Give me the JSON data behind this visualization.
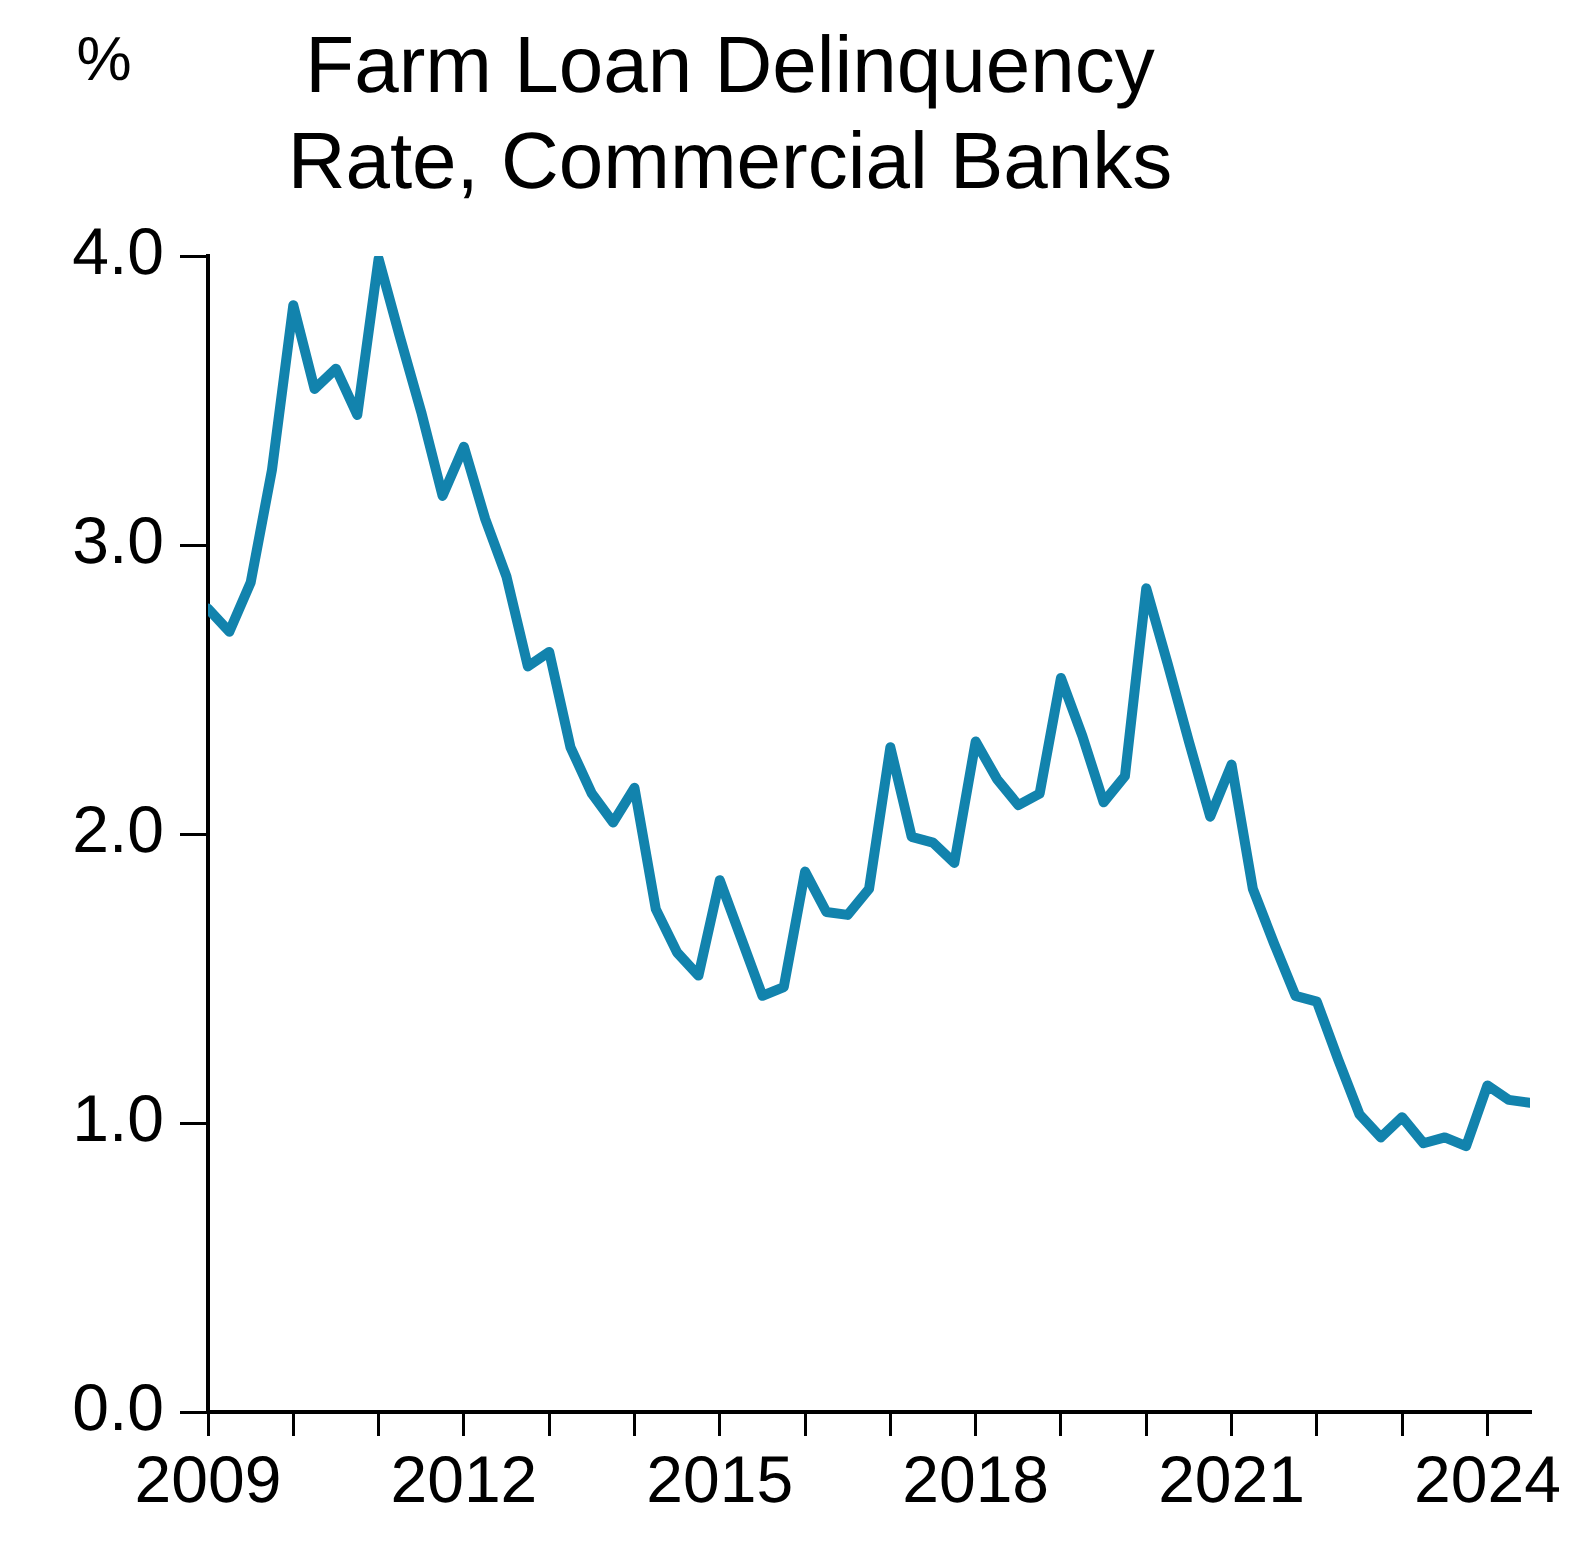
{
  "chart_data": {
    "type": "line",
    "title": "Farm Loan Delinquency Rate, Commercial Banks",
    "ylabel": "%",
    "x": [
      "2009-01",
      "2009-04",
      "2009-07",
      "2009-10",
      "2010-01",
      "2010-04",
      "2010-07",
      "2010-10",
      "2011-01",
      "2011-04",
      "2011-07",
      "2011-10",
      "2012-01",
      "2012-04",
      "2012-07",
      "2012-10",
      "2013-01",
      "2013-04",
      "2013-07",
      "2013-10",
      "2014-01",
      "2014-04",
      "2014-07",
      "2014-10",
      "2015-01",
      "2015-04",
      "2015-07",
      "2015-10",
      "2016-01",
      "2016-04",
      "2016-07",
      "2016-10",
      "2017-01",
      "2017-04",
      "2017-07",
      "2017-10",
      "2018-01",
      "2018-04",
      "2018-07",
      "2018-10",
      "2019-01",
      "2019-04",
      "2019-07",
      "2019-10",
      "2020-01",
      "2020-04",
      "2020-07",
      "2020-10",
      "2021-01",
      "2021-04",
      "2021-07",
      "2021-10",
      "2022-01",
      "2022-04",
      "2022-07",
      "2022-10",
      "2023-01",
      "2023-04",
      "2023-07",
      "2023-10",
      "2024-01",
      "2024-04",
      "2024-07"
    ],
    "series": [
      {
        "color": "#1283ad",
        "values": [
          2.78,
          2.7,
          2.87,
          3.26,
          3.83,
          3.54,
          3.61,
          3.45,
          3.99,
          3.72,
          3.46,
          3.17,
          3.34,
          3.09,
          2.89,
          2.58,
          2.63,
          2.3,
          2.14,
          2.04,
          2.16,
          1.74,
          1.59,
          1.51,
          1.84,
          1.64,
          1.44,
          1.47,
          1.87,
          1.73,
          1.72,
          1.81,
          2.3,
          1.99,
          1.97,
          1.9,
          2.32,
          2.19,
          2.1,
          2.14,
          2.54,
          2.34,
          2.11,
          2.2,
          2.85,
          2.59,
          2.32,
          2.06,
          2.24,
          1.81,
          1.62,
          1.44,
          1.42,
          1.22,
          1.03,
          0.95,
          1.02,
          0.93,
          0.95,
          0.92,
          1.13,
          1.08,
          1.07
        ]
      }
    ],
    "xlim": [
      "2009-01",
      "2024-07"
    ],
    "xticks": [
      "2009",
      {
        "value": "2010",
        "label": null
      },
      {
        "value": "2011",
        "label": null
      },
      "2012",
      {
        "value": "2013",
        "label": null
      },
      {
        "value": "2014",
        "label": null
      },
      "2015",
      {
        "value": "2016",
        "label": null
      },
      {
        "value": "2017",
        "label": null
      },
      "2018",
      {
        "value": "2019",
        "label": null
      },
      {
        "value": "2020",
        "label": null
      },
      "2021",
      {
        "value": "2022",
        "label": null
      },
      {
        "value": "2023",
        "label": null
      },
      "2024"
    ],
    "ylim": [
      0,
      4
    ],
    "yticks": [
      {
        "value": 0,
        "label": "0.0"
      },
      {
        "value": 1,
        "label": "1.0"
      },
      {
        "value": 2,
        "label": "2.0"
      },
      {
        "value": 3,
        "label": "3.0"
      },
      {
        "value": 4,
        "label": "4.0"
      }
    ],
    "grid": false,
    "legend": false,
    "marker": "none",
    "line_style": "solid"
  }
}
